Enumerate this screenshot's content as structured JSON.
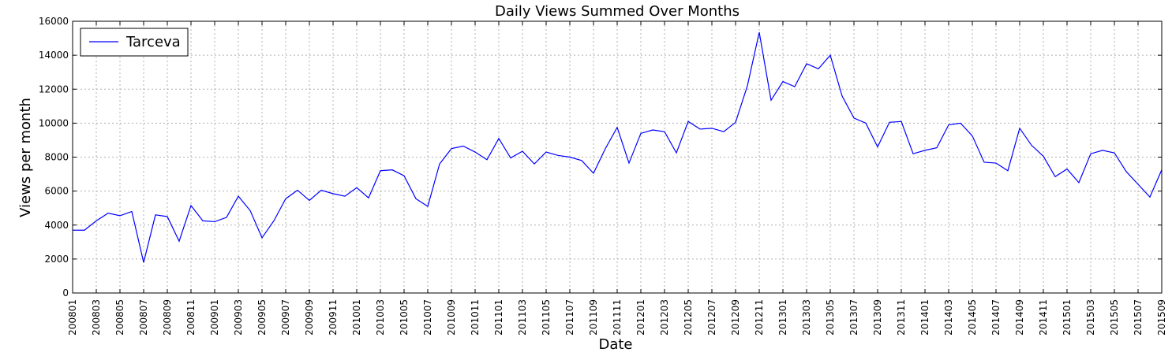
{
  "chart_data": {
    "type": "line",
    "title": "Daily Views Summed Over Months",
    "xlabel": "Date",
    "ylabel": "Views per month",
    "ylim": [
      0,
      16000
    ],
    "yticks": [
      0,
      2000,
      4000,
      6000,
      8000,
      10000,
      12000,
      14000,
      16000
    ],
    "x": [
      "200801",
      "200802",
      "200803",
      "200804",
      "200805",
      "200806",
      "200807",
      "200808",
      "200809",
      "200810",
      "200811",
      "200812",
      "200901",
      "200902",
      "200903",
      "200904",
      "200905",
      "200906",
      "200907",
      "200908",
      "200909",
      "200910",
      "200911",
      "200912",
      "201001",
      "201002",
      "201003",
      "201004",
      "201005",
      "201006",
      "201007",
      "201008",
      "201009",
      "201010",
      "201011",
      "201012",
      "201101",
      "201102",
      "201103",
      "201104",
      "201105",
      "201106",
      "201107",
      "201108",
      "201109",
      "201110",
      "201111",
      "201112",
      "201201",
      "201202",
      "201203",
      "201204",
      "201205",
      "201206",
      "201207",
      "201208",
      "201209",
      "201210",
      "201211",
      "201212",
      "201301",
      "201302",
      "201303",
      "201304",
      "201305",
      "201306",
      "201307",
      "201308",
      "201309",
      "201310",
      "201311",
      "201312",
      "201401",
      "201402",
      "201403",
      "201404",
      "201405",
      "201406",
      "201407",
      "201408",
      "201409",
      "201410",
      "201411",
      "201412",
      "201501",
      "201502",
      "201503",
      "201504",
      "201505",
      "201506",
      "201507",
      "201508",
      "201509"
    ],
    "xtick_labels": [
      "200801",
      "200803",
      "200805",
      "200807",
      "200809",
      "200811",
      "200901",
      "200903",
      "200905",
      "200907",
      "200909",
      "200911",
      "201001",
      "201003",
      "201005",
      "201007",
      "201009",
      "201011",
      "201101",
      "201103",
      "201105",
      "201107",
      "201109",
      "201111",
      "201201",
      "201203",
      "201205",
      "201207",
      "201209",
      "201211",
      "201301",
      "201303",
      "201305",
      "201307",
      "201309",
      "201311",
      "201401",
      "201403",
      "201405",
      "201407",
      "201409",
      "201411",
      "201501",
      "201503",
      "201505",
      "201507",
      "201509"
    ],
    "grid": true,
    "legend_position": "top-left",
    "series": [
      {
        "name": "Tarceva",
        "color": "#0000ff",
        "values": [
          3700,
          3700,
          4250,
          4700,
          4550,
          4800,
          1800,
          4600,
          4500,
          3050,
          5150,
          4250,
          4200,
          4450,
          5700,
          4850,
          3250,
          4250,
          5550,
          6050,
          5450,
          6050,
          5850,
          5700,
          6200,
          5600,
          7200,
          7250,
          6900,
          5550,
          5100,
          7600,
          8500,
          8650,
          8300,
          7850,
          9100,
          7950,
          8350,
          7600,
          8300,
          8100,
          8000,
          7800,
          7050,
          8500,
          9750,
          7650,
          9400,
          9600,
          9500,
          8250,
          10100,
          9650,
          9700,
          9500,
          10050,
          12200,
          15350,
          11350,
          12450,
          12150,
          13500,
          13200,
          14000,
          11600,
          10300,
          10000,
          8600,
          10050,
          10100,
          8200,
          8400,
          8550,
          9900,
          10000,
          9250,
          7700,
          7650,
          7200,
          9700,
          8700,
          8050,
          6850,
          7300,
          6500,
          8200,
          8400,
          8250,
          7150,
          6400,
          5650,
          7250
        ]
      }
    ]
  }
}
